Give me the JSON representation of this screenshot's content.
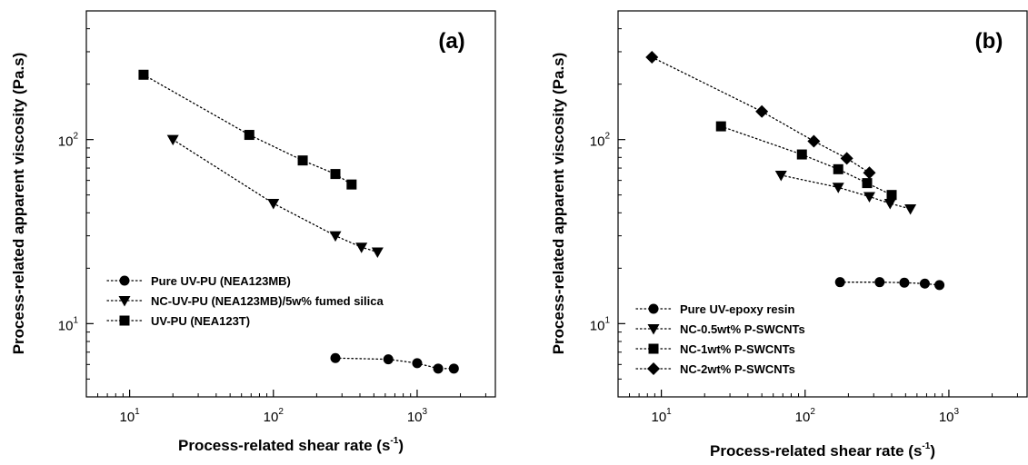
{
  "chart_data": [
    {
      "type": "scatter",
      "panel_label": "(a)",
      "xlabel_main": "Process-related shear rate (s",
      "xlabel_sup": "-1",
      "xlabel_end": ")",
      "ylabel": "Process-related apparent viscosity (Pa.s)",
      "xscale": "log",
      "yscale": "log",
      "xlim": [
        5,
        3500
      ],
      "ylim": [
        4,
        500
      ],
      "xticks": [
        {
          "base": "10",
          "exp": "1",
          "value": 10
        },
        {
          "base": "10",
          "exp": "2",
          "value": 100
        },
        {
          "base": "10",
          "exp": "3",
          "value": 1000
        }
      ],
      "yticks": [
        {
          "base": "10",
          "exp": "1",
          "value": 10
        },
        {
          "base": "10",
          "exp": "2",
          "value": 100
        }
      ],
      "grid": false,
      "legend_position": "center-left",
      "series": [
        {
          "name": "Pure UV-PU (NEA123MB)",
          "marker": "circle",
          "x": [
            270,
            630,
            1000,
            1400,
            1800
          ],
          "y": [
            6.5,
            6.4,
            6.1,
            5.7,
            5.7
          ]
        },
        {
          "name": "NC-UV-PU (NEA123MB)/5w% fumed silica",
          "marker": "triangle-down",
          "x": [
            20,
            100,
            270,
            410,
            530
          ],
          "y": [
            100,
            45,
            30,
            26,
            24.5
          ]
        },
        {
          "name": "UV-PU (NEA123T)",
          "marker": "square",
          "x": [
            12.5,
            68,
            160,
            270,
            350
          ],
          "y": [
            225,
            106,
            77,
            65,
            57
          ]
        }
      ]
    },
    {
      "type": "scatter",
      "panel_label": "(b)",
      "xlabel_main": "Process-related shear rate (s",
      "xlabel_sup": "-1",
      "xlabel_end": ")",
      "ylabel": "Process-related apparent viscosity (Pa.s)",
      "xscale": "log",
      "yscale": "log",
      "xlim": [
        5,
        3500
      ],
      "ylim": [
        4,
        500
      ],
      "xticks": [
        {
          "base": "10",
          "exp": "1",
          "value": 10
        },
        {
          "base": "10",
          "exp": "2",
          "value": 100
        },
        {
          "base": "10",
          "exp": "3",
          "value": 1000
        }
      ],
      "yticks": [
        {
          "base": "10",
          "exp": "1",
          "value": 10
        },
        {
          "base": "10",
          "exp": "2",
          "value": 100
        }
      ],
      "grid": false,
      "legend_position": "bottom-left",
      "series": [
        {
          "name": "Pure UV-epoxy resin",
          "marker": "circle",
          "x": [
            175,
            330,
            490,
            680,
            860
          ],
          "y": [
            16.8,
            16.8,
            16.7,
            16.5,
            16.2
          ]
        },
        {
          "name": "NC-0.5wt% P-SWCNTs",
          "marker": "triangle-down",
          "x": [
            68,
            170,
            280,
            390,
            540
          ],
          "y": [
            64,
            55,
            49,
            45,
            42
          ]
        },
        {
          "name": "NC-1wt% P-SWCNTs",
          "marker": "square",
          "x": [
            26,
            95,
            170,
            270,
            400
          ],
          "y": [
            118,
            83,
            69,
            58,
            50
          ]
        },
        {
          "name": "NC-2wt% P-SWCNTs",
          "marker": "diamond",
          "x": [
            8.6,
            50,
            115,
            195,
            280
          ],
          "y": [
            280,
            142,
            98,
            79,
            66
          ]
        }
      ]
    }
  ]
}
